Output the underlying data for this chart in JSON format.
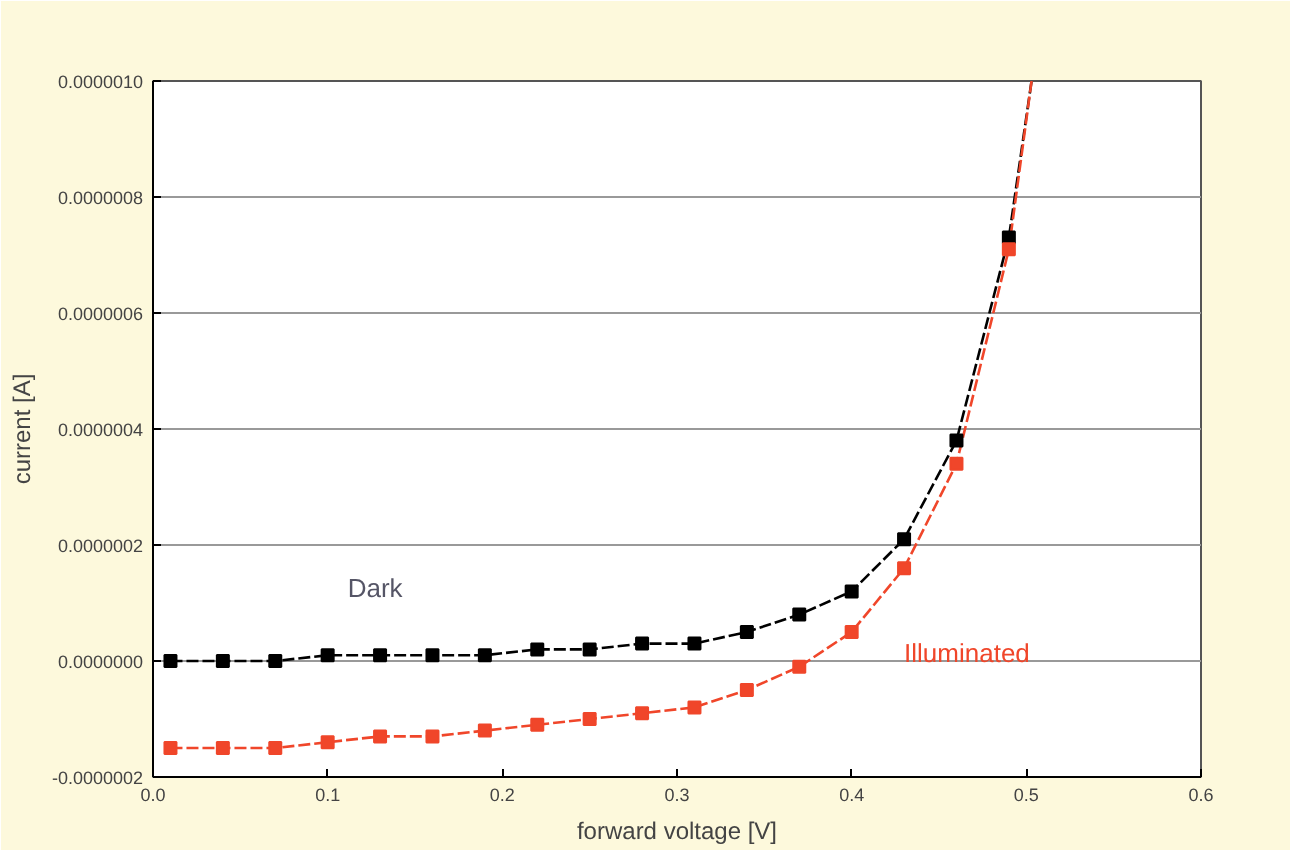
{
  "chart_data": {
    "type": "line",
    "xlabel": "forward voltage [V]",
    "ylabel": "current [A]",
    "xlim": [
      0,
      0.6
    ],
    "ylim": [
      -2e-07,
      1e-06
    ],
    "xticks": [
      {
        "value": 0,
        "label": "0.0"
      },
      {
        "value": 0.1,
        "label": "0.1"
      },
      {
        "value": 0.2,
        "label": "0.2"
      },
      {
        "value": 0.3,
        "label": "0.3"
      },
      {
        "value": 0.4,
        "label": "0.4"
      },
      {
        "value": 0.5,
        "label": "0.5"
      },
      {
        "value": 0.6,
        "label": "0.6"
      }
    ],
    "yticks": [
      {
        "value": -2e-07,
        "label": "-0.0000002"
      },
      {
        "value": 0,
        "label": "0.0000000"
      },
      {
        "value": 2e-07,
        "label": "0.0000002"
      },
      {
        "value": 4e-07,
        "label": "0.0000004"
      },
      {
        "value": 6e-07,
        "label": "0.0000006"
      },
      {
        "value": 8e-07,
        "label": "0.0000008"
      },
      {
        "value": 1e-06,
        "label": "0.0000010"
      }
    ],
    "grid": "y",
    "line_style": "dashed",
    "x": [
      0.01,
      0.04,
      0.07,
      0.1,
      0.13,
      0.16,
      0.19,
      0.22,
      0.25,
      0.28,
      0.31,
      0.34,
      0.37,
      0.4,
      0.43,
      0.46,
      0.49
    ],
    "series": [
      {
        "name": "Dark",
        "color": "#000000",
        "type": "scatter",
        "marker": "square",
        "values": [
          0,
          0,
          0,
          1e-08,
          1e-08,
          1e-08,
          1e-08,
          2e-08,
          2e-08,
          3e-08,
          3e-08,
          5e-08,
          8e-08,
          1.2e-07,
          2.1e-07,
          3.8e-07,
          7.3e-07
        ]
      },
      {
        "name": "Illuminated",
        "color": "#f0462a",
        "type": "scatter",
        "marker": "square",
        "values": [
          -1.5e-07,
          -1.5e-07,
          -1.5e-07,
          -1.4e-07,
          -1.3e-07,
          -1.3e-07,
          -1.2e-07,
          -1.1e-07,
          -1e-07,
          -9e-08,
          -8e-08,
          -5e-08,
          -1e-08,
          5e-08,
          1.6e-07,
          3.4e-07,
          7.1e-07
        ]
      },
      {
        "color": "#000000",
        "x": [
          0.01,
          0.04,
          0.07,
          0.1,
          0.13,
          0.16,
          0.19,
          0.22,
          0.25,
          0.28,
          0.31,
          0.34,
          0.37,
          0.4,
          0.43,
          0.46,
          0.49,
          0.503
        ],
        "values": [
          0,
          0,
          0,
          1e-08,
          1e-08,
          1e-08,
          1e-08,
          2e-08,
          2e-08,
          3e-08,
          3e-08,
          5e-08,
          8e-08,
          1.2e-07,
          2.1e-07,
          3.8e-07,
          7.3e-07,
          1e-06
        ]
      },
      {
        "color": "#f0462a",
        "x": [
          0.01,
          0.04,
          0.07,
          0.1,
          0.13,
          0.16,
          0.19,
          0.22,
          0.25,
          0.28,
          0.31,
          0.34,
          0.37,
          0.4,
          0.43,
          0.46,
          0.49,
          0.503
        ],
        "values": [
          -1.5e-07,
          -1.5e-07,
          -1.5e-07,
          -1.4e-07,
          -1.3e-07,
          -1.3e-07,
          -1.2e-07,
          -1.1e-07,
          -1e-07,
          -9e-08,
          -8e-08,
          -5e-08,
          -1e-08,
          5e-08,
          1.6e-07,
          3.4e-07,
          7.1e-07,
          1e-06
        ]
      }
    ]
  }
}
